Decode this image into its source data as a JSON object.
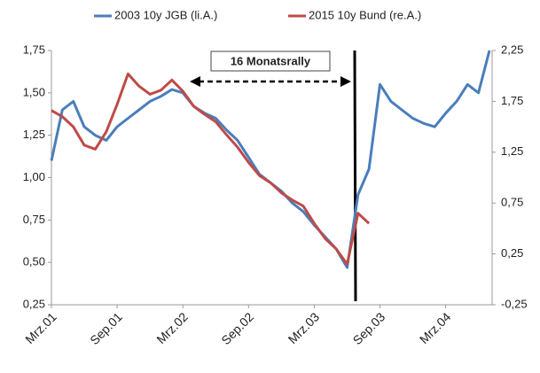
{
  "chart_data": {
    "type": "line",
    "x": [
      "2001-03",
      "2001-04",
      "2001-05",
      "2001-06",
      "2001-07",
      "2001-08",
      "2001-09",
      "2001-10",
      "2001-11",
      "2001-12",
      "2002-01",
      "2002-02",
      "2002-03",
      "2002-04",
      "2002-05",
      "2002-06",
      "2002-07",
      "2002-08",
      "2002-09",
      "2002-10",
      "2002-11",
      "2002-12",
      "2003-01",
      "2003-02",
      "2003-03",
      "2003-04",
      "2003-05",
      "2003-06",
      "2003-07",
      "2003-08",
      "2003-09",
      "2003-10",
      "2003-11",
      "2003-12",
      "2004-01",
      "2004-02",
      "2004-03",
      "2004-04",
      "2004-05",
      "2004-06",
      "2004-07"
    ],
    "series": [
      {
        "name": "2003 10y JGB (li.A.)",
        "color": "#4a7ebb",
        "axis": "y",
        "values": [
          1.1,
          1.4,
          1.45,
          1.3,
          1.25,
          1.22,
          1.3,
          1.35,
          1.4,
          1.45,
          1.48,
          1.52,
          1.5,
          1.42,
          1.38,
          1.35,
          1.28,
          1.22,
          1.12,
          1.02,
          0.97,
          0.92,
          0.85,
          0.8,
          0.72,
          0.65,
          0.58,
          0.47,
          0.9,
          1.05,
          1.55,
          1.45,
          1.4,
          1.35,
          1.32,
          1.3,
          1.38,
          1.45,
          1.55,
          1.5,
          1.75
        ]
      },
      {
        "name": "2015 10y Bund (re.A.)",
        "color": "#be4b48",
        "axis": "y2",
        "values": [
          1.66,
          1.6,
          1.5,
          1.32,
          1.28,
          1.45,
          1.72,
          2.02,
          1.9,
          1.82,
          1.86,
          1.96,
          1.85,
          1.7,
          1.62,
          1.55,
          1.42,
          1.3,
          1.15,
          1.02,
          0.95,
          0.85,
          0.78,
          0.72,
          0.55,
          0.4,
          0.3,
          0.15,
          0.65,
          0.55,
          null,
          null,
          null,
          null,
          null,
          null,
          null,
          null,
          null,
          null,
          null
        ]
      }
    ],
    "xticks": [
      {
        "value": "2001-03",
        "label": "Mrz.01"
      },
      {
        "value": "2001-09",
        "label": "Sep.01"
      },
      {
        "value": "2002-03",
        "label": "Mrz.02"
      },
      {
        "value": "2002-09",
        "label": "Sep.02"
      },
      {
        "value": "2003-03",
        "label": "Mrz.03"
      },
      {
        "value": "2003-09",
        "label": "Sep.03"
      },
      {
        "value": "2004-03",
        "label": "Mrz.04"
      }
    ],
    "ylim": [
      0.25,
      1.75
    ],
    "yticks": [
      {
        "value": 0.25,
        "label": "0,25"
      },
      {
        "value": 0.5,
        "label": "0,50"
      },
      {
        "value": 0.75,
        "label": "0,75"
      },
      {
        "value": 1.0,
        "label": "1,00"
      },
      {
        "value": 1.25,
        "label": "1,25"
      },
      {
        "value": 1.5,
        "label": "1,50"
      },
      {
        "value": 1.75,
        "label": "1,75"
      }
    ],
    "y2lim": [
      -0.25,
      2.25
    ],
    "y2ticks": [
      {
        "value": -0.25,
        "label": "-0,25"
      },
      {
        "value": 0.25,
        "label": "0,25"
      },
      {
        "value": 0.75,
        "label": "0,75"
      },
      {
        "value": 1.25,
        "label": "1,25"
      },
      {
        "value": 1.75,
        "label": "1,75"
      },
      {
        "value": 2.25,
        "label": "2,25"
      }
    ],
    "annotation": "16 Monatsrally",
    "legend": "top"
  }
}
